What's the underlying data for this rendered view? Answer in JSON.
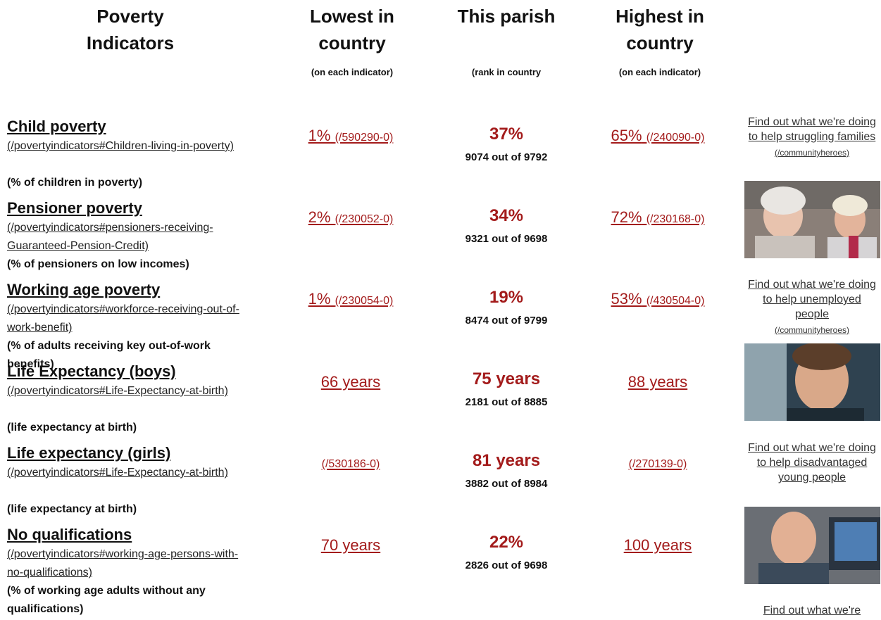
{
  "header": {
    "columns": [
      {
        "title": "Poverty Indicators"
      },
      {
        "title": "Lowest in country",
        "note": "(on each indicator)"
      },
      {
        "title": "This parish",
        "note": "(rank in country"
      },
      {
        "title": "Highest in country",
        "note": "(on each indicator)"
      }
    ]
  },
  "rows": [
    {
      "name": "Child poverty",
      "link": "(/povertyindicators#Children-living-in-poverty)",
      "description": "(% of children in poverty)",
      "lowest": {
        "value": "1%",
        "link": "(/590290-0)"
      },
      "parish": {
        "value": "37%",
        "rank": "9074 out of 9792"
      },
      "highest": {
        "value": "65%",
        "link": "(/240090-0)"
      }
    },
    {
      "name": "Pensioner poverty",
      "link": "(/povertyindicators#pensioners-receiving-Guaranteed-Pension-Credit)",
      "description": "(% of pensioners on low incomes)",
      "lowest": {
        "value": "2%",
        "link": "(/230052-0)"
      },
      "parish": {
        "value": "34%",
        "rank": "9321 out of 9698"
      },
      "highest": {
        "value": "72%",
        "link": "(/230168-0)"
      }
    },
    {
      "name": "Working age poverty",
      "link": "(/povertyindicators#workforce-receiving-out-of-work-benefit)",
      "description": "(% of adults receiving key out-of-work benefits)",
      "lowest": {
        "value": "1%",
        "link": "(/230054-0)"
      },
      "parish": {
        "value": "19%",
        "rank": "8474 out of 9799"
      },
      "highest": {
        "value": "53%",
        "link": "(/430504-0)"
      }
    },
    {
      "name": "Life Expectancy (boys)",
      "link": "(/povertyindicators#Life-Expectancy-at-birth)",
      "description": "(life expectancy at birth)",
      "lowest": {
        "value": "66 years"
      },
      "parish": {
        "value": "75 years",
        "rank": "2181 out of 8885"
      },
      "highest": {
        "value": "88 years"
      }
    },
    {
      "name": "Life expectancy (girls)",
      "link": "(/povertyindicators#Life-Expectancy-at-birth)",
      "description": "(life expectancy at birth)",
      "lowest": {
        "link": "(/530186-0)"
      },
      "parish": {
        "value": "81 years",
        "rank": "3882 out of 8984"
      },
      "highest": {
        "link": "(/270139-0)"
      }
    },
    {
      "name": "No qualifications",
      "link": "(/povertyindicators#working-age-persons-with-no-qualifications)",
      "description": "(% of working age adults without any qualifications)",
      "lowest": {
        "value": "70 years"
      },
      "parish": {
        "value": "22%",
        "rank": "2826 out of 9698"
      },
      "highest": {
        "value": "100 years"
      }
    }
  ],
  "promos": [
    {
      "text": "Find out what we're doing to help struggling families",
      "link": "(/communityheroes)"
    },
    {
      "text": "Find out what we're doing to help unemployed people",
      "link": "(/communityheroes)"
    },
    {
      "text": "Find out what we're doing to help disadvantaged young people"
    },
    {
      "text": "Find out what we're"
    }
  ]
}
